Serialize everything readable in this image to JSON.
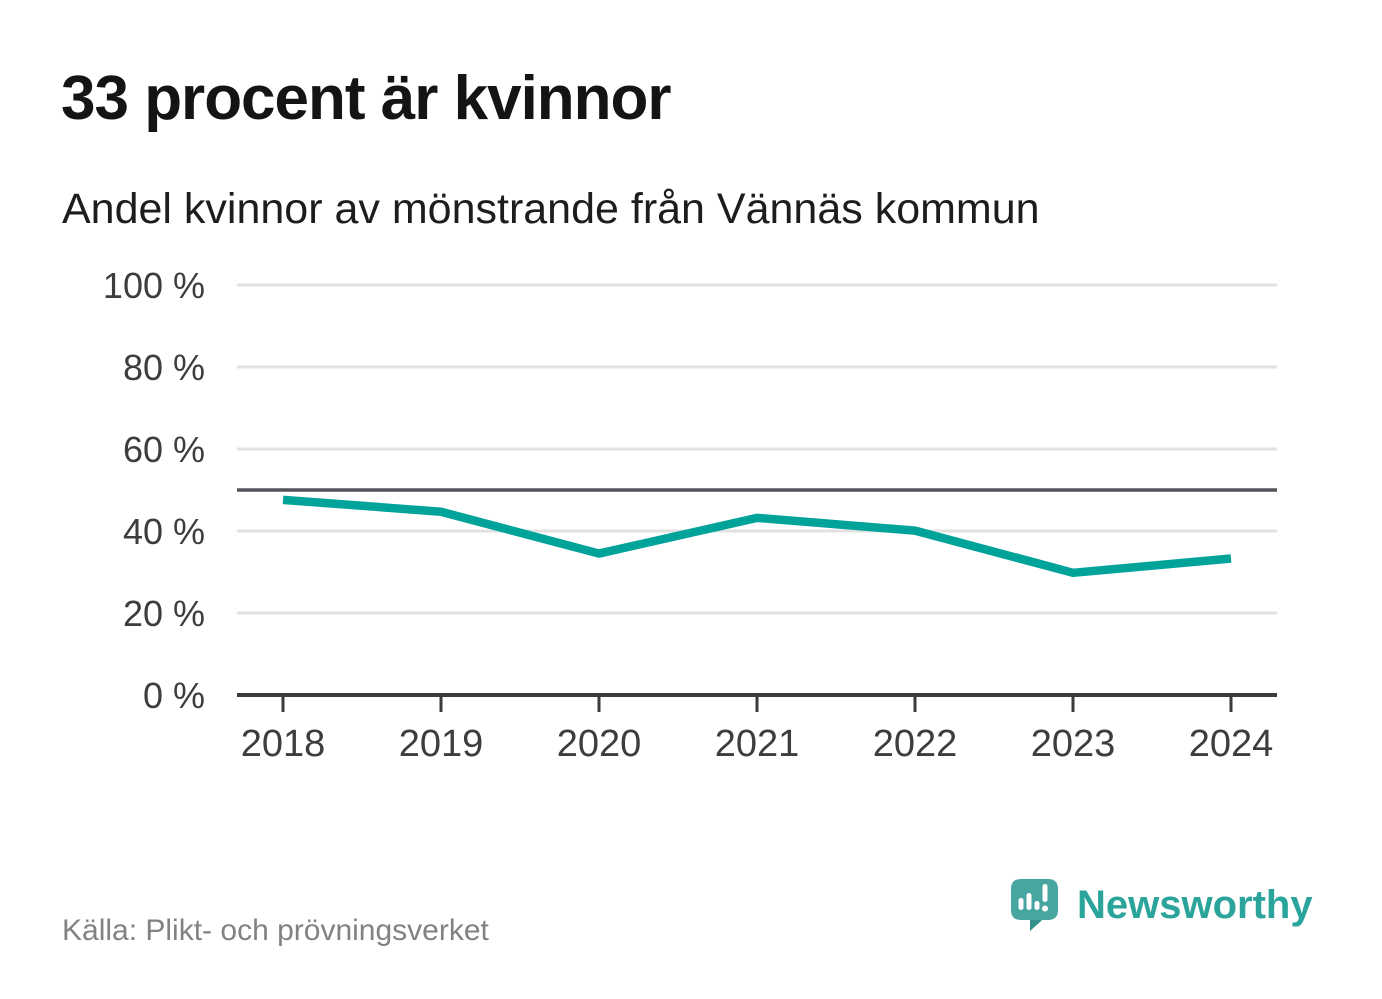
{
  "header": {
    "title": "33 procent är kvinnor",
    "subtitle": "Andel kvinnor av mönstrande från Vännäs kommun"
  },
  "footer": {
    "source": "Källa: Plikt- och prövningsverket",
    "brand": "Newsworthy",
    "logo_icon": "speech-bubble-bar-chart-exclamation"
  },
  "colors": {
    "line": "#00a39a",
    "grid": "#e1e1e1",
    "axis": "#3b3b3b",
    "reference_line": "#54555b",
    "tick_label": "#3d3d3d",
    "source_text": "#828282",
    "brand_teal": "#2ba49c",
    "logo_bubble": "#48a5a0",
    "logo_fold": "#358f8a"
  },
  "chart_data": {
    "type": "line",
    "title": "33 procent är kvinnor",
    "subtitle": "Andel kvinnor av mönstrande från Vännäs kommun",
    "x": [
      2018,
      2019,
      2020,
      2021,
      2022,
      2023,
      2024
    ],
    "series": [
      {
        "name": "Andel kvinnor av mönstrande",
        "values": [
          47.6,
          44.7,
          34.5,
          43.2,
          40.1,
          29.8,
          33.3
        ]
      }
    ],
    "ylim": [
      0,
      100
    ],
    "yticks": [
      0,
      20,
      40,
      60,
      80,
      100
    ],
    "ytick_labels": [
      "0 %",
      "20 %",
      "40 %",
      "60 %",
      "80 %",
      "100 %"
    ],
    "reference_line": 50,
    "grid": "horizontal",
    "legend": "none",
    "xlabel": "",
    "ylabel": ""
  }
}
